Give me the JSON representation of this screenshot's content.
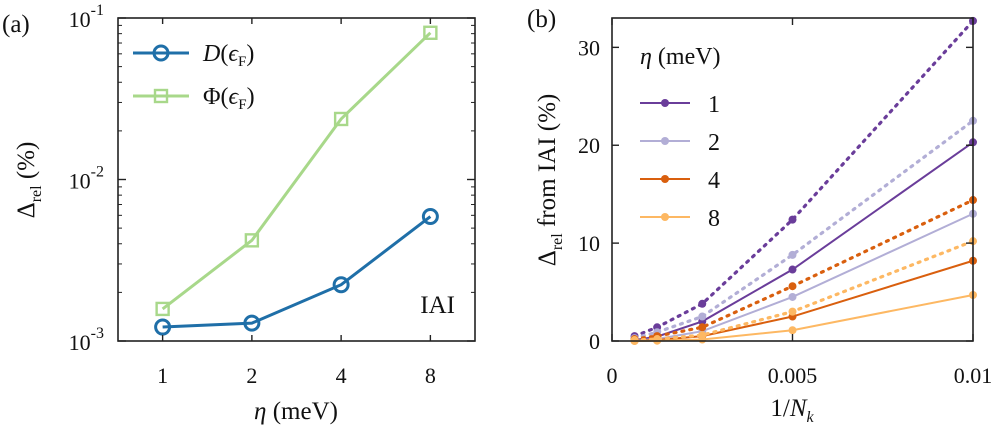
{
  "chart_data": [
    {
      "panel": "(a)",
      "type": "line",
      "yscale": "log",
      "x": [
        "1",
        "2",
        "4",
        "8"
      ],
      "xlabel": "η (meV)",
      "ylabel": "Δrel (%)",
      "ylim": [
        0.001,
        0.1
      ],
      "yticks": [
        {
          "value": 0.1,
          "base": "10",
          "exp": "-1"
        },
        {
          "value": 0.01,
          "base": "10",
          "exp": "-2"
        },
        {
          "value": 0.001,
          "base": "10",
          "exp": "-3"
        }
      ],
      "annotation": "IAI",
      "series": [
        {
          "name": "D(εF)",
          "marker": "circle",
          "color": "#1f6fa8",
          "values": [
            0.00122,
            0.00129,
            0.00223,
            0.0059
          ]
        },
        {
          "name": "Φ(εF)",
          "marker": "square",
          "color": "#a8d88a",
          "values": [
            0.00158,
            0.0042,
            0.0237,
            0.081
          ]
        }
      ]
    },
    {
      "panel": "(b)",
      "type": "line",
      "xlabel": "1/Nk",
      "ylabel": "Δrel from IAI (%)",
      "xlim": [
        0,
        0.01
      ],
      "ylim": [
        0,
        33
      ],
      "xticks": [
        "0",
        "0.005",
        "0.01"
      ],
      "yticks": [
        "0",
        "10",
        "20",
        "30"
      ],
      "legend_title": "η (meV)",
      "x": [
        0.000625,
        0.00125,
        0.0025,
        0.005,
        0.01
      ],
      "series": [
        {
          "name": "1",
          "color": "#6a3d9a",
          "solid": [
            0.1,
            0.45,
            2.0,
            7.3,
            20.3
          ],
          "dotted": [
            0.5,
            1.4,
            3.8,
            12.4,
            32.7
          ]
        },
        {
          "name": "2",
          "color": "#b2aed6",
          "solid": [
            0.05,
            0.2,
            1.0,
            4.5,
            13.0
          ],
          "dotted": [
            0.3,
            0.9,
            2.5,
            8.8,
            22.5
          ]
        },
        {
          "name": "4",
          "color": "#d95f0e",
          "solid": [
            0.02,
            0.1,
            0.5,
            2.5,
            8.2
          ],
          "dotted": [
            0.2,
            0.5,
            1.4,
            5.6,
            14.4
          ]
        },
        {
          "name": "8",
          "color": "#fdb863",
          "solid": [
            0.0,
            0.03,
            0.15,
            1.1,
            4.7
          ],
          "dotted": [
            0.1,
            0.2,
            0.6,
            3.0,
            10.2
          ]
        }
      ]
    }
  ]
}
